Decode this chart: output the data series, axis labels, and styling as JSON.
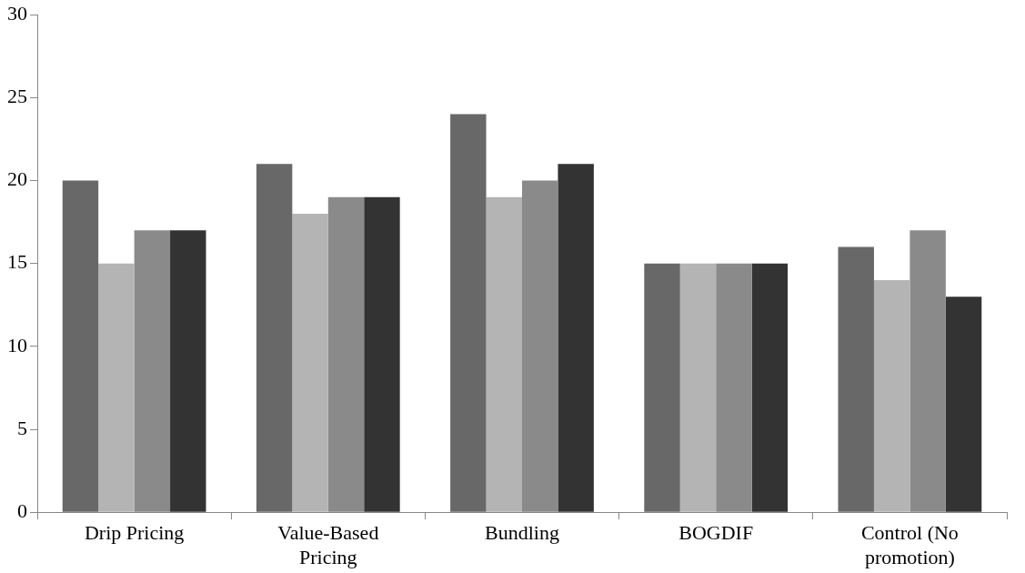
{
  "chart_data": {
    "type": "bar",
    "categories": [
      "Drip Pricing",
      "Value-Based Pricing",
      "Bundling",
      "BOGDIF",
      "Control (No promotion)"
    ],
    "series": [
      {
        "color": "#686868",
        "values": [
          20,
          21,
          24,
          15,
          16
        ]
      },
      {
        "color": "#b4b4b4",
        "values": [
          15,
          18,
          19,
          15,
          14
        ]
      },
      {
        "color": "#8a8a8a",
        "values": [
          17,
          19,
          20,
          15,
          17
        ]
      },
      {
        "color": "#333333",
        "values": [
          17,
          19,
          21,
          15,
          13
        ]
      }
    ],
    "ylim": [
      0,
      30
    ],
    "yticks": [
      0,
      5,
      10,
      15,
      20,
      25,
      30
    ],
    "grid": false,
    "legend": false
  }
}
